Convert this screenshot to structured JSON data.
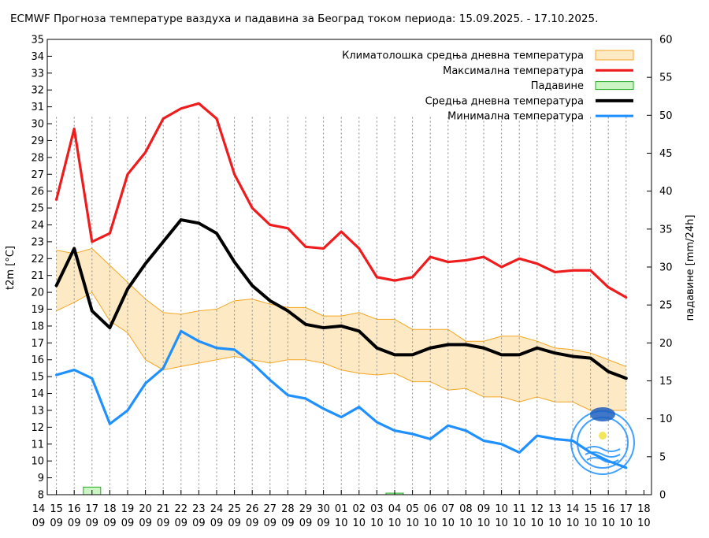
{
  "chart_data": {
    "type": "line",
    "title": "ECMWF Прогноза температуре ваздуха и падавина за Београд током периода: 15.09.2025. - 17.10.2025.",
    "ylabel_left": "t2m [°C]",
    "ylabel_right": "падавине [mm/24h]",
    "ylim_left": [
      8,
      35
    ],
    "ylim_right": [
      0,
      60
    ],
    "yticks_left": [
      "8",
      "9",
      "10",
      "11",
      "12",
      "13",
      "14",
      "15",
      "16",
      "17",
      "18",
      "19",
      "20",
      "21",
      "22",
      "23",
      "24",
      "25",
      "26",
      "27",
      "28",
      "29",
      "30",
      "31",
      "32",
      "33",
      "34",
      "35"
    ],
    "yticks_right": [
      "0",
      "5",
      "10",
      "15",
      "20",
      "25",
      "30",
      "35",
      "40",
      "45",
      "50",
      "55",
      "60"
    ],
    "x_days": [
      "14",
      "15",
      "16",
      "17",
      "18",
      "19",
      "20",
      "21",
      "22",
      "23",
      "24",
      "25",
      "26",
      "27",
      "28",
      "29",
      "30",
      "01",
      "02",
      "03",
      "04",
      "05",
      "06",
      "07",
      "08",
      "09",
      "10",
      "11",
      "12",
      "13",
      "14",
      "15",
      "16",
      "17",
      "18"
    ],
    "x_months": [
      "09",
      "09",
      "09",
      "09",
      "09",
      "09",
      "09",
      "09",
      "09",
      "09",
      "09",
      "09",
      "09",
      "09",
      "09",
      "09",
      "09",
      "10",
      "10",
      "10",
      "10",
      "10",
      "10",
      "10",
      "10",
      "10",
      "10",
      "10",
      "10",
      "10",
      "10",
      "10",
      "10",
      "10",
      "10"
    ],
    "x_dates": [
      "15.09.",
      "16.09.",
      "17.09.",
      "18.09.",
      "19.09.",
      "20.09.",
      "21.09.",
      "22.09.",
      "23.09.",
      "24.09.",
      "25.09.",
      "26.09.",
      "27.09.",
      "28.09.",
      "29.09.",
      "30.09.",
      "01.10.",
      "02.10.",
      "03.10.",
      "04.10.",
      "05.10.",
      "06.10.",
      "07.10.",
      "08.10.",
      "09.10.",
      "10.10.",
      "11.10.",
      "12.10.",
      "13.10.",
      "14.10.",
      "15.10.",
      "16.10.",
      "17.10."
    ],
    "legend_position": "top-right",
    "grid": "dotted vertical lines at each day",
    "series": [
      {
        "name": "Климатолошка средња дневна температура",
        "kind": "band",
        "color": "#f5a623",
        "fill": "#fde9c4",
        "upper": [
          22.5,
          22.3,
          22.6,
          21.6,
          20.6,
          19.6,
          18.8,
          18.7,
          18.9,
          19.0,
          19.5,
          19.6,
          19.3,
          19.1,
          19.1,
          18.6,
          18.6,
          18.8,
          18.4,
          18.4,
          17.8,
          17.8,
          17.8,
          17.1,
          17.1,
          17.4,
          17.4,
          17.1,
          16.7,
          16.6,
          16.4,
          16.0,
          15.6
        ],
        "lower": [
          18.9,
          19.4,
          20.0,
          18.3,
          17.6,
          16.0,
          15.4,
          15.6,
          15.8,
          16.0,
          16.2,
          16.0,
          15.8,
          16.0,
          16.0,
          15.8,
          15.4,
          15.2,
          15.1,
          15.2,
          14.7,
          14.7,
          14.2,
          14.3,
          13.8,
          13.8,
          13.5,
          13.8,
          13.5,
          13.5,
          13.0,
          13.0,
          13.0
        ]
      },
      {
        "name": "Максимална температура",
        "color": "#ee1c1c",
        "values": [
          25.5,
          29.7,
          23.0,
          23.5,
          27.0,
          28.3,
          30.3,
          30.9,
          31.2,
          30.3,
          27.0,
          25.0,
          24.0,
          23.8,
          22.7,
          22.6,
          23.6,
          22.6,
          20.9,
          20.7,
          20.9,
          22.1,
          21.8,
          21.9,
          22.1,
          21.5,
          22.0,
          21.7,
          21.2,
          21.3,
          21.3,
          20.3,
          19.7
        ]
      },
      {
        "name": "Падавине",
        "kind": "precip-bar",
        "color": "#22aa22",
        "fill": "#ccf5c4",
        "values": [
          0,
          0,
          1,
          0,
          0,
          0,
          0,
          0,
          0,
          0,
          0,
          0,
          0,
          0,
          0,
          0,
          0,
          0,
          0,
          0.2,
          0,
          0,
          0,
          0,
          0,
          0,
          0,
          0,
          0,
          0,
          0,
          0,
          0
        ]
      },
      {
        "name": "Средња дневна температура",
        "color": "#000000",
        "values": [
          20.4,
          22.6,
          18.9,
          17.9,
          20.2,
          21.7,
          23.0,
          24.3,
          24.1,
          23.5,
          21.8,
          20.4,
          19.5,
          18.9,
          18.1,
          17.9,
          18.0,
          17.7,
          16.7,
          16.3,
          16.3,
          16.7,
          16.9,
          16.9,
          16.7,
          16.3,
          16.3,
          16.7,
          16.4,
          16.2,
          16.1,
          15.3,
          14.9
        ]
      },
      {
        "name": "Минимална температура",
        "color": "#1e90ff",
        "values": [
          15.1,
          15.4,
          14.9,
          12.2,
          13.0,
          14.6,
          15.5,
          17.7,
          17.1,
          16.7,
          16.6,
          15.8,
          14.8,
          13.9,
          13.7,
          13.1,
          12.6,
          13.2,
          12.3,
          11.8,
          11.6,
          11.3,
          12.1,
          11.8,
          11.2,
          11.0,
          10.5,
          11.5,
          11.3,
          11.2,
          10.5,
          10.0,
          9.6
        ]
      }
    ]
  }
}
